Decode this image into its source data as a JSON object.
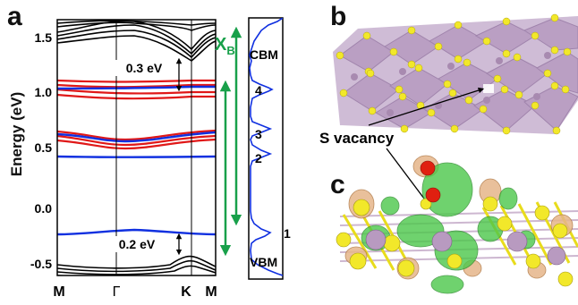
{
  "panels": {
    "a": "a",
    "b": "b",
    "c": "c"
  },
  "band_plot": {
    "ylabel": "Energy (eV)",
    "y_ticks": [
      "1.5",
      "1.0",
      "0.5",
      "0.0",
      "-0.5"
    ],
    "x_ticks": [
      "M",
      "Γ",
      "K",
      "M"
    ],
    "annotation_top": "0.3 eV",
    "annotation_bottom": "0.2 eV"
  },
  "chart_data": {
    "type": "line",
    "ylim": [
      -0.62,
      1.7
    ],
    "x_ticks": [
      "M",
      "Γ",
      "K",
      "M"
    ],
    "ylabel": "Energy (eV)",
    "series": [
      {
        "color": "#1030e0",
        "levels": [
          1.07,
          0.68,
          0.47,
          -0.22
        ]
      },
      {
        "color": "#e01818",
        "levels": [
          1.13,
          1.09,
          0.7,
          0.66
        ]
      }
    ],
    "annotations": [
      {
        "text": "0.3 eV",
        "from": 1.07,
        "to": 1.37
      },
      {
        "text": "0.2 eV",
        "from": -0.42,
        "to": -0.22
      }
    ]
  },
  "transition": {
    "label_main": "X",
    "label_sub": "B",
    "color": "#18a04a"
  },
  "dos": {
    "labels": {
      "cbm": "CBM",
      "vbm": "VBM",
      "p4": "4",
      "p3": "3",
      "p2": "2",
      "p1": "1"
    },
    "line_color": "#1030e0"
  },
  "structure": {
    "vacancy_label": "S vacancy",
    "atom_color_s": "#f2e82a",
    "atom_color_metal": "#a88ab0"
  }
}
